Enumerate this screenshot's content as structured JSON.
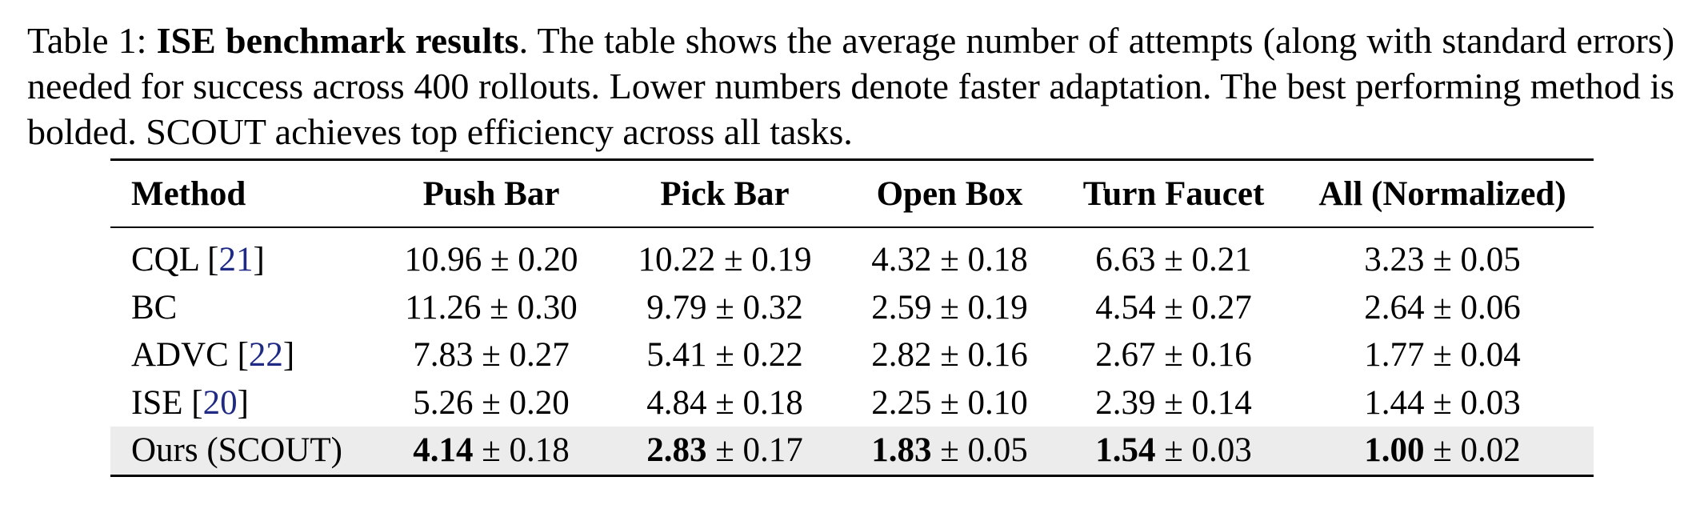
{
  "caption": {
    "label": "Table 1:",
    "title": "ISE benchmark results",
    "text": ".  The table shows the average number of attempts (along with standard errors) needed for success across 400 rollouts.  Lower numbers denote faster adaptation. The best performing method is bolded. SCOUT achieves top efficiency across all tasks."
  },
  "table": {
    "header": [
      "Method",
      "Push Bar",
      "Pick Bar",
      "Open Box",
      "Turn Faucet",
      "All (Normalized)"
    ],
    "rows": [
      {
        "method": {
          "name": "CQL [",
          "cite": "21",
          "close": "]"
        },
        "cells": [
          "10.96 ± 0.20",
          "10.22 ± 0.19",
          "4.32 ± 0.18",
          "6.63 ± 0.21",
          "3.23 ± 0.05"
        ]
      },
      {
        "method": {
          "name": "BC"
        },
        "cells": [
          "11.26 ± 0.30",
          "9.79 ± 0.32",
          "2.59 ± 0.19",
          "4.54 ± 0.27",
          "2.64 ± 0.06"
        ]
      },
      {
        "method": {
          "name": "ADVC [",
          "cite": "22",
          "close": "]"
        },
        "cells": [
          "7.83 ± 0.27",
          "5.41 ± 0.22",
          "2.82 ± 0.16",
          "2.67 ± 0.16",
          "1.77 ± 0.04"
        ]
      },
      {
        "method": {
          "name": "ISE [",
          "cite": "20",
          "close": "]"
        },
        "cells": [
          "5.26 ± 0.20",
          "4.84 ± 0.18",
          "2.25 ± 0.10",
          "2.39 ± 0.14",
          "1.44 ± 0.03"
        ]
      },
      {
        "method": {
          "name": "Ours (SCOUT)"
        },
        "highlight": true,
        "cells": [
          {
            "best": "4.14",
            "rest": " ± 0.18"
          },
          {
            "best": "2.83",
            "rest": " ± 0.17"
          },
          {
            "best": "1.83",
            "rest": " ± 0.05"
          },
          {
            "best": "1.54",
            "rest": " ± 0.03"
          },
          {
            "best": "1.00",
            "rest": " ± 0.02"
          }
        ]
      }
    ]
  }
}
